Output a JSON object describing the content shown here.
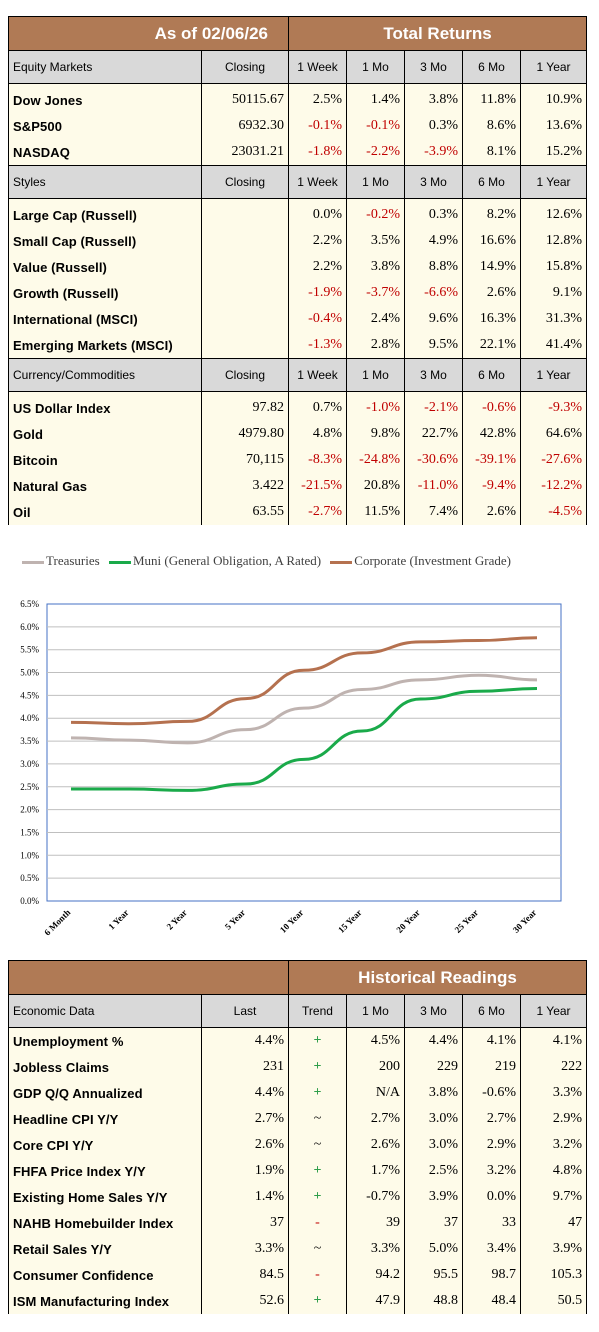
{
  "header": {
    "as_of": "As of  02/06/26",
    "total_returns": "Total Returns"
  },
  "colors": {
    "header_brown": "#b07a55",
    "negative_red": "#c00000",
    "treasuries": "#bfb3b0",
    "muni": "#1aaa4a",
    "corporate": "#b5714f"
  },
  "sections": [
    {
      "header": [
        "Equity Markets",
        "Closing",
        "1 Week",
        "1 Mo",
        "3 Mo",
        "6 Mo",
        "1 Year"
      ],
      "rows": [
        {
          "name": "Dow Jones",
          "closing": "50115.67",
          "vals": [
            "2.5%",
            "1.4%",
            "3.8%",
            "11.8%",
            "10.9%"
          ]
        },
        {
          "name": "S&P500",
          "closing": "6932.30",
          "vals": [
            "-0.1%",
            "-0.1%",
            "0.3%",
            "8.6%",
            "13.6%"
          ]
        },
        {
          "name": "NASDAQ",
          "closing": "23031.21",
          "vals": [
            "-1.8%",
            "-2.2%",
            "-3.9%",
            "8.1%",
            "15.2%"
          ]
        }
      ]
    },
    {
      "header": [
        "Styles",
        "Closing",
        "1 Week",
        "1 Mo",
        "3 Mo",
        "6 Mo",
        "1 Year"
      ],
      "rows": [
        {
          "name": "Large Cap (Russell)",
          "closing": "",
          "vals": [
            "0.0%",
            "-0.2%",
            "0.3%",
            "8.2%",
            "12.6%"
          ]
        },
        {
          "name": "Small Cap (Russell)",
          "closing": "",
          "vals": [
            "2.2%",
            "3.5%",
            "4.9%",
            "16.6%",
            "12.8%"
          ]
        },
        {
          "name": "Value (Russell)",
          "closing": "",
          "vals": [
            "2.2%",
            "3.8%",
            "8.8%",
            "14.9%",
            "15.8%"
          ]
        },
        {
          "name": "Growth (Russell)",
          "closing": "",
          "vals": [
            "-1.9%",
            "-3.7%",
            "-6.6%",
            "2.6%",
            "9.1%"
          ]
        },
        {
          "name": "International (MSCI)",
          "closing": "",
          "vals": [
            "-0.4%",
            "2.4%",
            "9.6%",
            "16.3%",
            "31.3%"
          ]
        },
        {
          "name": "Emerging Markets (MSCI)",
          "closing": "",
          "vals": [
            "-1.3%",
            "2.8%",
            "9.5%",
            "22.1%",
            "41.4%"
          ]
        }
      ]
    },
    {
      "header": [
        "Currency/Commodities",
        "Closing",
        "1 Week",
        "1 Mo",
        "3 Mo",
        "6 Mo",
        "1 Year"
      ],
      "rows": [
        {
          "name": "US Dollar Index",
          "closing": "97.82",
          "vals": [
            "0.7%",
            "-1.0%",
            "-2.1%",
            "-0.6%",
            "-9.3%"
          ]
        },
        {
          "name": "Gold",
          "closing": "4979.80",
          "vals": [
            "4.8%",
            "9.8%",
            "22.7%",
            "42.8%",
            "64.6%"
          ]
        },
        {
          "name": "Bitcoin",
          "closing": "70,115",
          "vals": [
            "-8.3%",
            "-24.8%",
            "-30.6%",
            "-39.1%",
            "-27.6%"
          ]
        },
        {
          "name": "Natural Gas",
          "closing": "3.422",
          "vals": [
            "-21.5%",
            "20.8%",
            "-11.0%",
            "-9.4%",
            "-12.2%"
          ]
        },
        {
          "name": "Oil",
          "closing": "63.55",
          "vals": [
            "-2.7%",
            "11.5%",
            "7.4%",
            "2.6%",
            "-4.5%"
          ]
        }
      ]
    }
  ],
  "chart_data": {
    "type": "line",
    "categories": [
      "6 Month",
      "1 Year",
      "2 Year",
      "5 Year",
      "10 Year",
      "15 Year",
      "20 Year",
      "25 Year",
      "30 Year"
    ],
    "series": [
      {
        "name": "Treasuries",
        "values": [
          3.57,
          3.52,
          3.46,
          3.75,
          4.22,
          4.63,
          4.84,
          4.94,
          4.84
        ]
      },
      {
        "name": "Muni (General Obligation, A Rated)",
        "values": [
          2.45,
          2.45,
          2.42,
          2.56,
          3.1,
          3.72,
          4.42,
          4.59,
          4.65
        ]
      },
      {
        "name": "Corporate (Investment Grade)",
        "values": [
          3.91,
          3.88,
          3.93,
          4.43,
          5.05,
          5.43,
          5.67,
          5.7,
          5.76
        ]
      }
    ],
    "ylim": [
      0,
      6.5
    ],
    "yticks": [
      "0.0%",
      "0.5%",
      "1.0%",
      "1.5%",
      "2.0%",
      "2.5%",
      "3.0%",
      "3.5%",
      "4.0%",
      "4.5%",
      "5.0%",
      "5.5%",
      "6.0%",
      "6.5%"
    ],
    "grid": true,
    "legend_placement": "top"
  },
  "economic": {
    "historical_title": "Historical Readings",
    "header": [
      "Economic Data",
      "Last",
      "Trend",
      "1 Mo",
      "3 Mo",
      "6 Mo",
      "1 Year"
    ],
    "rows": [
      {
        "name": "Unemployment %",
        "last": "4.4%",
        "trend": "+",
        "vals": [
          "4.5%",
          "4.4%",
          "4.1%",
          "4.1%"
        ]
      },
      {
        "name": "Jobless Claims",
        "last": "231",
        "trend": "+",
        "vals": [
          "200",
          "229",
          "219",
          "222"
        ]
      },
      {
        "name": "GDP Q/Q Annualized",
        "last": "4.4%",
        "trend": "+",
        "vals": [
          "N/A",
          "3.8%",
          "-0.6%",
          "3.3%"
        ]
      },
      {
        "name": "Headline CPI Y/Y",
        "last": "2.7%",
        "trend": "~",
        "vals": [
          "2.7%",
          "3.0%",
          "2.7%",
          "2.9%"
        ]
      },
      {
        "name": "Core CPI Y/Y",
        "last": "2.6%",
        "trend": "~",
        "vals": [
          "2.6%",
          "3.0%",
          "2.9%",
          "3.2%"
        ]
      },
      {
        "name": "FHFA Price Index Y/Y",
        "last": "1.9%",
        "trend": "+",
        "vals": [
          "1.7%",
          "2.5%",
          "3.2%",
          "4.8%"
        ]
      },
      {
        "name": "Existing Home Sales Y/Y",
        "last": "1.4%",
        "trend": "+",
        "vals": [
          "-0.7%",
          "3.9%",
          "0.0%",
          "9.7%"
        ]
      },
      {
        "name": "NAHB Homebuilder Index",
        "last": "37",
        "trend": "-",
        "vals": [
          "39",
          "37",
          "33",
          "47"
        ]
      },
      {
        "name": "Retail Sales Y/Y",
        "last": "3.3%",
        "trend": "~",
        "vals": [
          "3.3%",
          "5.0%",
          "3.4%",
          "3.9%"
        ]
      },
      {
        "name": "Consumer Confidence",
        "last": "84.5",
        "trend": "-",
        "vals": [
          "94.2",
          "95.5",
          "98.7",
          "105.3"
        ]
      },
      {
        "name": "ISM Manufacturing Index",
        "last": "52.6",
        "trend": "+",
        "vals": [
          "47.9",
          "48.8",
          "48.4",
          "50.5"
        ]
      }
    ]
  }
}
